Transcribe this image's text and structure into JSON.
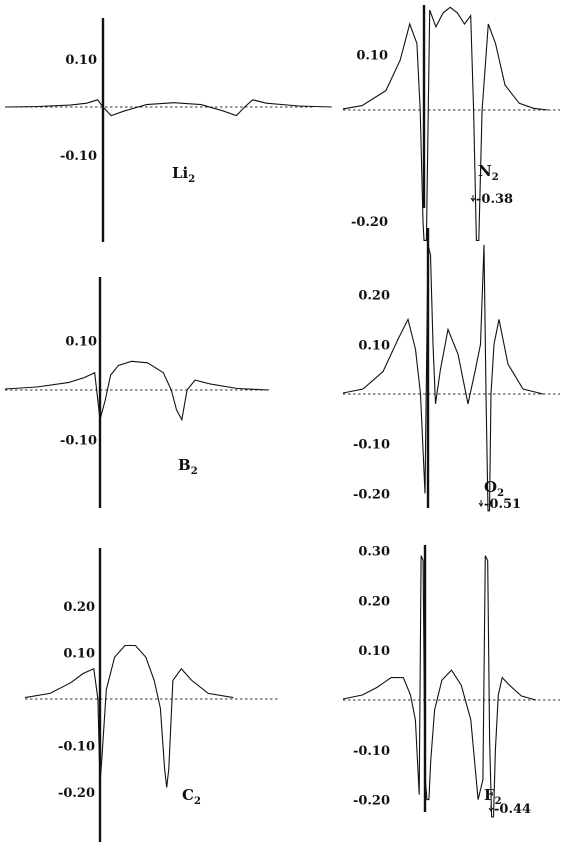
{
  "chart_data": [
    {
      "type": "line",
      "molecule": "Li",
      "molecule_sub": "2",
      "yticks": [
        {
          "value": 0.1,
          "label": "0.10"
        },
        {
          "value": -0.1,
          "label": "-0.10"
        }
      ],
      "ylim": [
        -0.27,
        0.15
      ],
      "xlim": [
        -1.8,
        4.2
      ],
      "nuclei": [
        0,
        2.6
      ],
      "series": [
        {
          "x": [
            -1.8,
            -1.2,
            -0.6,
            -0.3,
            -0.1,
            0,
            0.15,
            0.4,
            0.8,
            1.3,
            1.8,
            2.2,
            2.45,
            2.6,
            2.75,
            3.0,
            3.6,
            4.2
          ],
          "y": [
            0,
            0.001,
            0.004,
            0.008,
            0.015,
            0,
            -0.018,
            -0.008,
            0.005,
            0.009,
            0.005,
            -0.008,
            -0.018,
            0,
            0.015,
            0.008,
            0.002,
            0
          ]
        }
      ],
      "annotation": ""
    },
    {
      "type": "line",
      "molecule": "N",
      "molecule_sub": "2",
      "yticks": [
        {
          "value": 0.1,
          "label": "0.10"
        },
        {
          "value": -0.2,
          "label": "-0.20"
        }
      ],
      "ylim": [
        -0.235,
        0.2
      ],
      "xlim": [
        -1.7,
        2.6
      ],
      "nuclei": [
        0,
        1.1
      ],
      "series": [
        {
          "x": [
            -1.7,
            -1.3,
            -0.8,
            -0.5,
            -0.3,
            -0.15,
            -0.08,
            -0.02,
            0,
            0.05,
            0.12,
            0.25,
            0.4,
            0.55,
            0.7,
            0.85,
            0.98,
            1.04,
            1.1,
            1.15,
            1.22,
            1.35,
            1.5,
            1.7,
            2.0,
            2.3,
            2.6
          ],
          "y": [
            0.002,
            0.008,
            0.035,
            0.09,
            0.155,
            0.12,
            0,
            -0.2,
            -0.235,
            -0.235,
            0.18,
            0.15,
            0.175,
            0.185,
            0.175,
            0.155,
            0.17,
            0,
            -0.235,
            -0.235,
            0,
            0.155,
            0.12,
            0.045,
            0.012,
            0.003,
            0
          ]
        }
      ],
      "annotation": "-0.38"
    },
    {
      "type": "line",
      "molecule": "B",
      "molecule_sub": "2",
      "yticks": [
        {
          "value": 0.1,
          "label": "0.10"
        },
        {
          "value": -0.1,
          "label": "-0.10"
        }
      ],
      "ylim": [
        -0.235,
        0.175
      ],
      "xlim": [
        -1.8,
        3.2
      ],
      "nuclei": [
        0,
        1.55
      ],
      "series": [
        {
          "x": [
            -1.8,
            -1.2,
            -0.6,
            -0.3,
            -0.1,
            0,
            0.1,
            0.2,
            0.35,
            0.6,
            0.9,
            1.2,
            1.35,
            1.45,
            1.55,
            1.65,
            1.8,
            2.1,
            2.6,
            3.2
          ],
          "y": [
            0.002,
            0.006,
            0.015,
            0.025,
            0.035,
            -0.06,
            -0.02,
            0.03,
            0.05,
            0.058,
            0.055,
            0.035,
            0,
            -0.04,
            -0.06,
            0,
            0.02,
            0.012,
            0.003,
            0
          ]
        }
      ],
      "annotation": ""
    },
    {
      "type": "line",
      "molecule": "O",
      "molecule_sub": "2",
      "yticks": [
        {
          "value": 0.2,
          "label": "0.20"
        },
        {
          "value": 0.1,
          "label": "0.10"
        },
        {
          "value": -0.1,
          "label": "-0.10"
        },
        {
          "value": -0.2,
          "label": "-0.20"
        }
      ],
      "ylim": [
        -0.235,
        0.335
      ],
      "xlim": [
        -1.7,
        2.3
      ],
      "nuclei": [
        0,
        1.2
      ],
      "series": [
        {
          "x": [
            -1.7,
            -1.3,
            -0.9,
            -0.6,
            -0.4,
            -0.25,
            -0.15,
            -0.06,
            0,
            0.05,
            0.1,
            0.15,
            0.25,
            0.4,
            0.6,
            0.8,
            0.95,
            1.05,
            1.12,
            1.16,
            1.2,
            1.23,
            1.26,
            1.32,
            1.42,
            1.6,
            1.9,
            2.3
          ],
          "y": [
            0.002,
            0.01,
            0.045,
            0.11,
            0.15,
            0.09,
            0,
            -0.2,
            0.3,
            0.28,
            0.1,
            -0.02,
            0.05,
            0.13,
            0.08,
            -0.02,
            0.05,
            0.1,
            0.3,
            0,
            -0.235,
            -0.235,
            0,
            0.1,
            0.15,
            0.06,
            0.01,
            0
          ]
        }
      ],
      "annotation": "-0.51"
    },
    {
      "type": "line",
      "molecule": "C",
      "molecule_sub": "2",
      "yticks": [
        {
          "value": 0.2,
          "label": "0.20"
        },
        {
          "value": 0.1,
          "label": "0.10"
        },
        {
          "value": -0.1,
          "label": "-0.10"
        },
        {
          "value": -0.2,
          "label": "-0.20"
        }
      ],
      "ylim": [
        -0.255,
        0.3
      ],
      "xlim": [
        -1.8,
        3.2
      ],
      "nuclei": [
        0,
        1.6
      ],
      "series": [
        {
          "x": [
            -1.8,
            -1.2,
            -0.7,
            -0.4,
            -0.15,
            -0.05,
            0,
            0.05,
            0.15,
            0.35,
            0.6,
            0.85,
            1.1,
            1.3,
            1.45,
            1.55,
            1.6,
            1.65,
            1.75,
            1.95,
            2.2,
            2.6,
            3.2
          ],
          "y": [
            0.003,
            0.012,
            0.035,
            0.055,
            0.065,
            0,
            -0.185,
            -0.12,
            0.02,
            0.09,
            0.115,
            0.115,
            0.09,
            0.04,
            -0.02,
            -0.15,
            -0.19,
            -0.15,
            0.04,
            0.065,
            0.04,
            0.012,
            0.003
          ]
        }
      ],
      "annotation": ""
    },
    {
      "type": "line",
      "molecule": "F",
      "molecule_sub": "2",
      "yticks": [
        {
          "value": 0.3,
          "label": "0.30"
        },
        {
          "value": 0.2,
          "label": "0.20"
        },
        {
          "value": 0.1,
          "label": "0.10"
        },
        {
          "value": -0.1,
          "label": "-0.10"
        },
        {
          "value": -0.2,
          "label": "-0.20"
        }
      ],
      "ylim": [
        -0.235,
        0.31
      ],
      "xlim": [
        -1.7,
        2.3
      ],
      "nuclei": [
        0,
        1.4
      ],
      "series": [
        {
          "x": [
            -1.7,
            -1.3,
            -1.0,
            -0.7,
            -0.45,
            -0.3,
            -0.2,
            -0.12,
            -0.08,
            -0.04,
            0,
            0.04,
            0.08,
            0.12,
            0.2,
            0.35,
            0.55,
            0.75,
            0.95,
            1.1,
            1.2,
            1.25,
            1.3,
            1.34,
            1.38,
            1.42,
            1.46,
            1.52,
            1.6,
            1.75,
            2.0,
            2.3
          ],
          "y": [
            0.002,
            0.01,
            0.025,
            0.045,
            0.045,
            0.01,
            -0.04,
            -0.19,
            0.29,
            0.28,
            -0.15,
            -0.2,
            -0.2,
            -0.12,
            -0.02,
            0.04,
            0.06,
            0.03,
            -0.04,
            -0.2,
            -0.16,
            0.29,
            0.28,
            -0.08,
            -0.235,
            -0.235,
            -0.1,
            0.01,
            0.045,
            0.03,
            0.008,
            0
          ]
        }
      ],
      "annotation": "-0.44"
    }
  ]
}
